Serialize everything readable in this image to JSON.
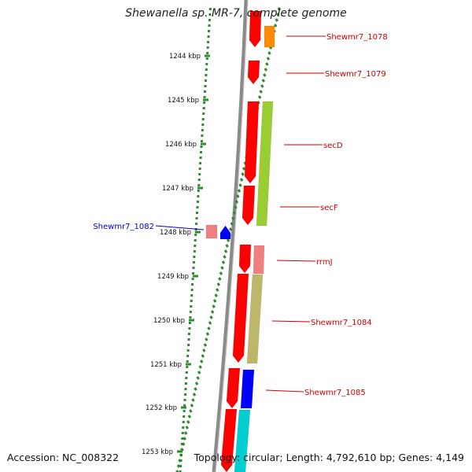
{
  "title": "Shewanella sp. MR-7, complete genome",
  "accession": "Accession: NC_008322",
  "topology": "Topology: circular; Length: 4,792,610 bp; Genes: 4,149",
  "colors": {
    "backbone": "#8a8a8a",
    "ticks": "#2e8b2e",
    "label_red": "#cc0000",
    "label_blue": "#0000cc"
  },
  "kbp_ticks": [
    "1244 kbp",
    "1245 kbp",
    "1246 kbp",
    "1247 kbp",
    "1248 kbp",
    "1249 kbp",
    "1250 kbp",
    "1251 kbp",
    "1252 kbp",
    "1253 kbp"
  ],
  "gene_labels": [
    {
      "text": "Shewmr7_1078",
      "color": "#cc0000"
    },
    {
      "text": "Shewmr7_1079",
      "color": "#cc0000"
    },
    {
      "text": "secD",
      "color": "#cc0000"
    },
    {
      "text": "secF",
      "color": "#cc0000"
    },
    {
      "text": "Shewmr7_1082",
      "color": "#0000cc"
    },
    {
      "text": "rrmJ",
      "color": "#cc0000"
    },
    {
      "text": "Shewmr7_1084",
      "color": "#cc0000"
    },
    {
      "text": "Shewmr7_1085",
      "color": "#cc0000"
    }
  ],
  "genes": [
    {
      "name": "Shewmr7_1078 (forward)",
      "color": "#ff0000",
      "strand": "forward"
    },
    {
      "name": "Shewmr7_1078 (ring)",
      "color": "#ff8c00",
      "strand": "forward"
    },
    {
      "name": "Shewmr7_1079 (forward)",
      "color": "#ff0000",
      "strand": "forward"
    },
    {
      "name": "secD (forward)",
      "color": "#ff0000",
      "strand": "forward"
    },
    {
      "name": "secD (ring)",
      "color": "#9acd32",
      "strand": "forward"
    },
    {
      "name": "secF (forward)",
      "color": "#ff0000",
      "strand": "forward"
    },
    {
      "name": "Shewmr7_1082 (ring)",
      "color": "#f08080",
      "strand": "reverse"
    },
    {
      "name": "Shewmr7_1082 (reverse)",
      "color": "#0000ff",
      "strand": "reverse"
    },
    {
      "name": "rrmJ (forward)",
      "color": "#ff0000",
      "strand": "forward"
    },
    {
      "name": "rrmJ (ring)",
      "color": "#f08080",
      "strand": "forward"
    },
    {
      "name": "Shewmr7_1084 (forward)",
      "color": "#ff0000",
      "strand": "forward"
    },
    {
      "name": "Shewmr7_1084 (ring)",
      "color": "#bdb76b",
      "strand": "forward"
    },
    {
      "name": "Shewmr7_1085 (forward)",
      "color": "#ff0000",
      "strand": "forward"
    },
    {
      "name": "Shewmr7_1085 (ring)",
      "color": "#0000ff",
      "strand": "forward"
    },
    {
      "name": "next gene (forward)",
      "color": "#ff0000",
      "strand": "forward"
    },
    {
      "name": "next gene (ring)",
      "color": "#00ced1",
      "strand": "forward"
    }
  ]
}
